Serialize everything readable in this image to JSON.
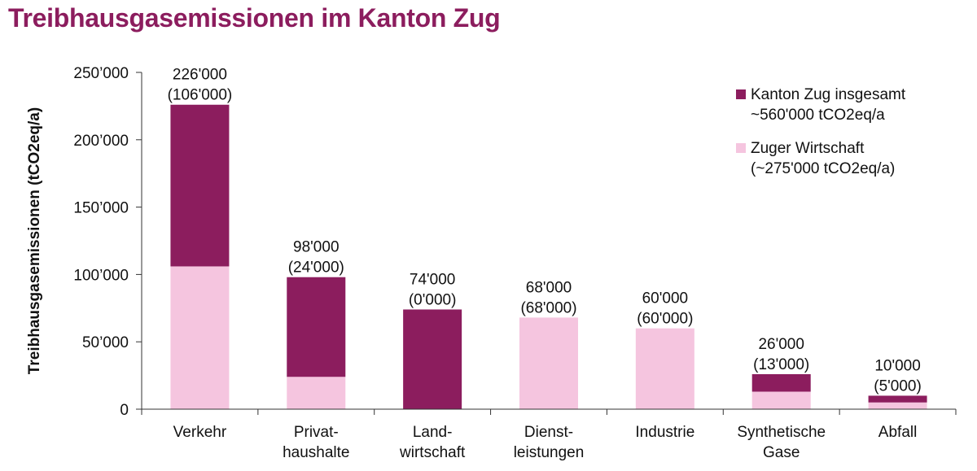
{
  "title": "Treibhausgasemissionen im Kanton Zug",
  "chart_data": {
    "type": "bar",
    "stacked": true,
    "ylabel": "Treibhausgasemissionen (tCO2eq/a)",
    "ylim": [
      0,
      250000
    ],
    "yticks": [
      0,
      50000,
      100000,
      150000,
      200000,
      250000
    ],
    "ytick_labels": [
      "0",
      "50’000",
      "100’000",
      "150’000",
      "200’000",
      "250’000"
    ],
    "grid": false,
    "legend_position": "top-right",
    "categories": [
      [
        "Verkehr"
      ],
      [
        "Privat-",
        "haushalte"
      ],
      [
        "Land-",
        "wirtschaft"
      ],
      [
        "Dienst-",
        "leistungen"
      ],
      [
        "Industrie"
      ],
      [
        "Synthetische",
        "Gase"
      ],
      [
        "Abfall"
      ]
    ],
    "totals": [
      226000,
      98000,
      74000,
      68000,
      60000,
      26000,
      10000
    ],
    "data_labels": [
      [
        "226'000",
        "(106'000)"
      ],
      [
        "98'000",
        "(24'000)"
      ],
      [
        "74'000",
        "(0'000)"
      ],
      [
        "68'000",
        "(68'000)"
      ],
      [
        "60'000",
        "(60'000)"
      ],
      [
        "26'000",
        "(13'000)"
      ],
      [
        "10'000",
        "(5'000)"
      ]
    ],
    "series": [
      {
        "name": [
          "Zuger Wirtschaft",
          "(~275'000 tCO2eq/a)"
        ],
        "color": "#f5c5df",
        "values": [
          106000,
          24000,
          0,
          68000,
          60000,
          13000,
          5000
        ]
      },
      {
        "name": [
          "Kanton Zug insgesamt",
          "~560'000 tCO2eq/a"
        ],
        "color": "#8c1d5e",
        "values": [
          120000,
          74000,
          74000,
          0,
          0,
          13000,
          5000
        ]
      }
    ]
  }
}
